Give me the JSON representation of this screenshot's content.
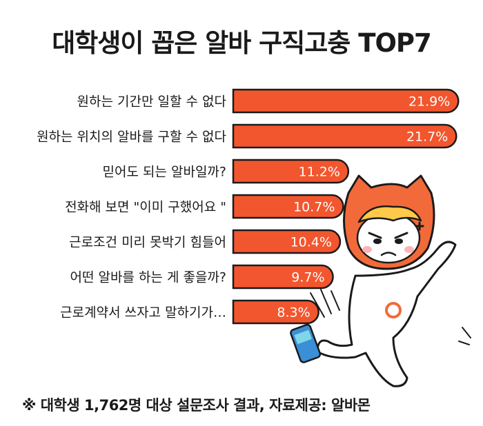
{
  "title": "대학생이 꼽은 알바 구직고충 TOP7",
  "footnote": "※ 대학생 1,762명 대상 설문조사 결과,  자료제공: 알바몬",
  "colors": {
    "bar": "#f2562e",
    "bar_outline": "#1a1a1a",
    "value_text": "#ffffff",
    "label_text": "#1a1a1a",
    "mascot_orange": "#f26a3a",
    "mascot_hair": "#ffc94a"
  },
  "chart_data": {
    "type": "bar",
    "orientation": "horizontal",
    "unit": "%",
    "categories": [
      "원하는 기간만 일할 수 없다",
      "원하는 위치의 알바를 구할 수 없다",
      "믿어도 되는 알바일까?",
      "전화해 보면 \"이미 구했어요 \"",
      "근로조건 미리 못박기 힘들어",
      "어떤 알바를 하는 게 좋을까?",
      "근로계약서 쓰자고 말하기가…"
    ],
    "values": [
      21.9,
      21.7,
      11.2,
      10.7,
      10.4,
      9.7,
      8.3
    ],
    "value_labels": [
      "21.9%",
      "21.7%",
      "11.2%",
      "10.7%",
      "10.4%",
      "9.7%",
      "8.3%"
    ]
  },
  "mascot": {
    "icon": "angry-cat-mascot-kicking-can"
  }
}
